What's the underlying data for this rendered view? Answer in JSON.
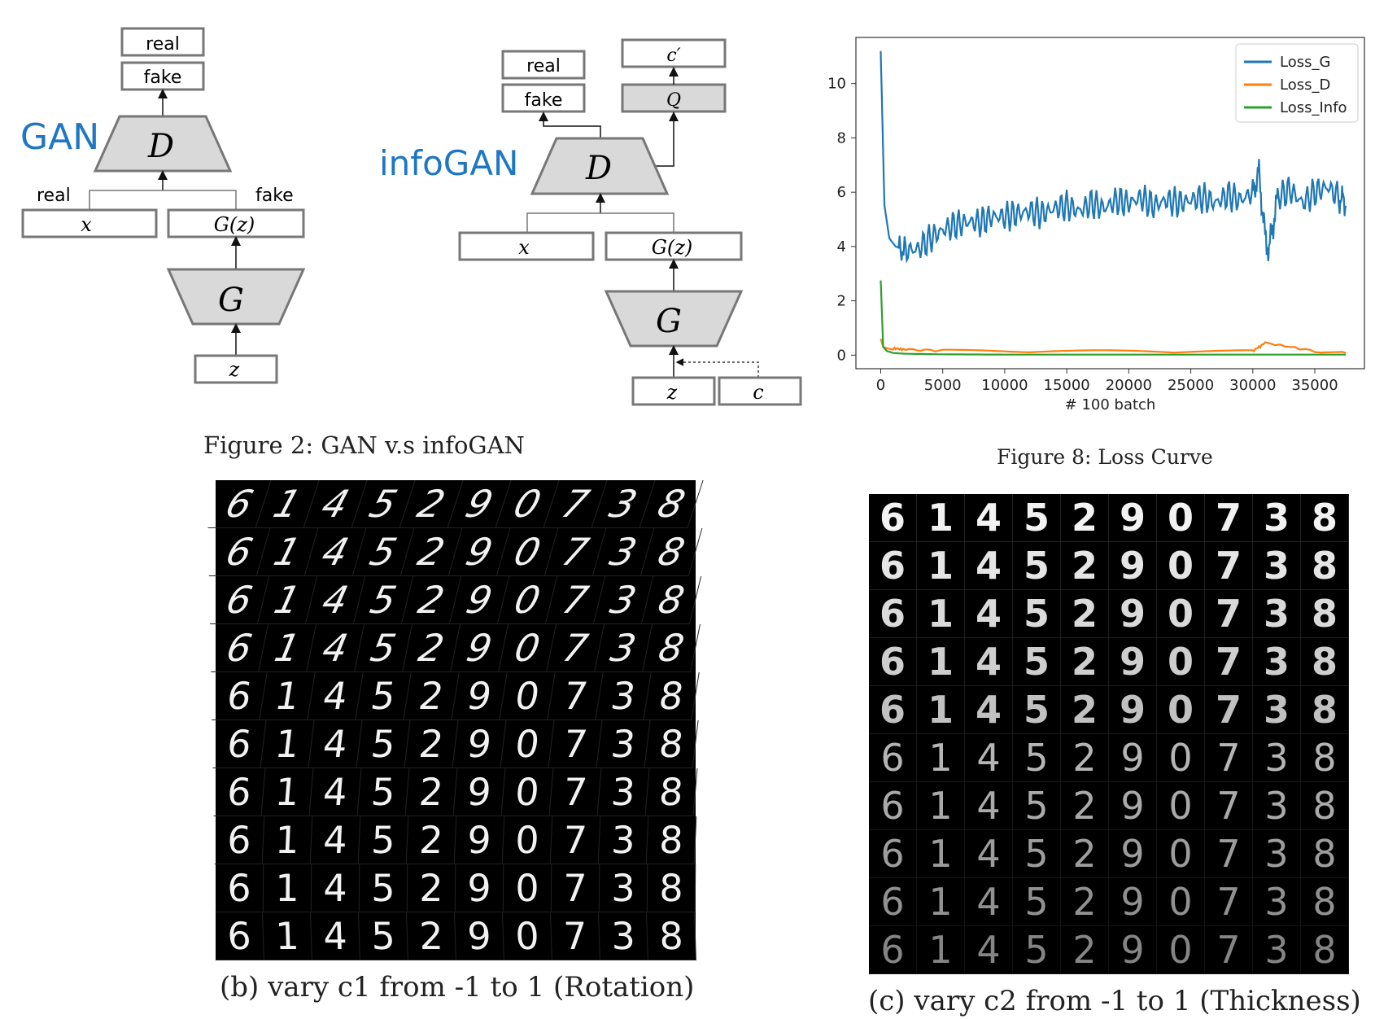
{
  "gan": {
    "title": "GAN",
    "out_real": "real",
    "out_fake": "fake",
    "d_label": "D",
    "in_real_label": "real",
    "in_fake_label": "fake",
    "x_label": "x",
    "gz_label": "G(z)",
    "g_label": "G",
    "z_label": "z"
  },
  "infogan": {
    "title": "infoGAN",
    "out_real": "real",
    "out_fake": "fake",
    "cprime_label": "c′",
    "q_label": "Q",
    "d_label": "D",
    "x_label": "x",
    "gz_label": "G(z)",
    "g_label": "G",
    "z_label": "z",
    "c_label": "c"
  },
  "fig2_caption": "Figure 2: GAN v.s infoGAN",
  "fig8_caption": "Figure 8: Loss Curve",
  "fig_b_caption": "(b) vary c1 from -1 to 1 (Rotation)",
  "fig_c_caption": "(c) vary c2 from -1 to 1 (Thickness)",
  "digit_columns": [
    "6",
    "1",
    "4",
    "5",
    "2",
    "9",
    "0",
    "7",
    "3",
    "8"
  ],
  "chart_data": {
    "type": "line",
    "title": "",
    "xlabel": "# 100 batch",
    "ylabel": "",
    "xlim": [
      -2000,
      39000
    ],
    "ylim": [
      -0.5,
      11.7
    ],
    "xticks": [
      0,
      5000,
      10000,
      15000,
      20000,
      25000,
      30000,
      35000
    ],
    "yticks": [
      0,
      2,
      4,
      6,
      8,
      10
    ],
    "grid": false,
    "legend_position": "top-right",
    "series": [
      {
        "name": "Loss_G",
        "color": "#1f77b4",
        "x": [
          0,
          300,
          700,
          1200,
          2000,
          3000,
          4000,
          5000,
          6000,
          7000,
          8000,
          9000,
          10000,
          11000,
          12000,
          13000,
          14000,
          15000,
          16000,
          17000,
          18000,
          19000,
          20000,
          21000,
          22000,
          23000,
          24000,
          25000,
          26000,
          27000,
          28000,
          29000,
          30000,
          30500,
          31000,
          31300,
          32000,
          33000,
          34000,
          35000,
          36000,
          37000,
          37500
        ],
        "y": [
          11.2,
          5.5,
          4.3,
          4.0,
          3.85,
          3.9,
          4.3,
          4.6,
          4.8,
          4.9,
          4.9,
          5.1,
          5.1,
          5.2,
          5.3,
          5.2,
          5.4,
          5.5,
          5.3,
          5.6,
          5.4,
          5.7,
          5.6,
          5.8,
          5.5,
          5.7,
          5.6,
          5.7,
          5.8,
          5.6,
          5.9,
          5.7,
          6.0,
          6.7,
          4.3,
          3.9,
          5.8,
          6.1,
          5.6,
          6.0,
          6.2,
          5.8,
          5.5
        ]
      },
      {
        "name": "Loss_D",
        "color": "#ff7f0e",
        "x": [
          0,
          200,
          500,
          1000,
          2000,
          5000,
          10000,
          15000,
          20000,
          25000,
          30000,
          31000,
          35000,
          37500
        ],
        "y": [
          0.6,
          0.3,
          0.25,
          0.2,
          0.15,
          0.12,
          0.1,
          0.1,
          0.1,
          0.09,
          0.1,
          0.4,
          0.1,
          0.08
        ]
      },
      {
        "name": "Loss_Info",
        "color": "#2ca02c",
        "x": [
          0,
          200,
          500,
          1000,
          2000,
          5000,
          10000,
          15000,
          20000,
          25000,
          30000,
          35000,
          37500
        ],
        "y": [
          2.75,
          0.3,
          0.15,
          0.08,
          0.05,
          0.03,
          0.02,
          0.02,
          0.02,
          0.02,
          0.02,
          0.02,
          0.02
        ]
      }
    ]
  }
}
